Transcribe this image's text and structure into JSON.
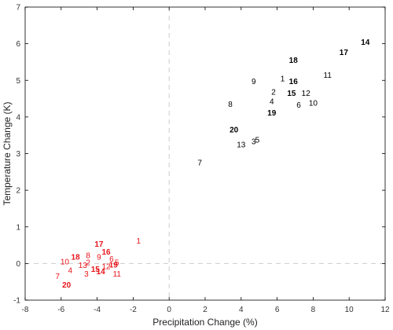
{
  "chart_data": {
    "type": "scatter",
    "title": "",
    "xlabel": "Precipitation Change (%)",
    "ylabel": "Temperature Change (K)",
    "xlim": [
      -8,
      12
    ],
    "ylim": [
      -1,
      7
    ],
    "xticks": [
      "-8",
      "-6",
      "-4",
      "-2",
      "0",
      "2",
      "4",
      "6",
      "8",
      "10",
      "12"
    ],
    "yticks": [
      "-1",
      "0",
      "1",
      "2",
      "3",
      "4",
      "5",
      "6",
      "7"
    ],
    "grid": false,
    "reference_lines": {
      "x": 0,
      "y": 0,
      "style": "dashed",
      "color": "#cccccc"
    },
    "series": [
      {
        "color": "#000000",
        "points": [
          {
            "label": "14",
            "x": 10.9,
            "y": 6.05,
            "bold": true
          },
          {
            "label": "17",
            "x": 9.7,
            "y": 5.77,
            "bold": true
          },
          {
            "label": "18",
            "x": 6.9,
            "y": 5.55,
            "bold": true
          },
          {
            "label": "11",
            "x": 8.8,
            "y": 5.15,
            "bold": false
          },
          {
            "label": "1",
            "x": 6.3,
            "y": 5.05,
            "bold": false
          },
          {
            "label": "16",
            "x": 6.9,
            "y": 4.97,
            "bold": true
          },
          {
            "label": "9",
            "x": 4.7,
            "y": 4.97,
            "bold": false
          },
          {
            "label": "2",
            "x": 5.8,
            "y": 4.68,
            "bold": false
          },
          {
            "label": "15",
            "x": 6.8,
            "y": 4.65,
            "bold": true
          },
          {
            "label": "12",
            "x": 7.6,
            "y": 4.65,
            "bold": false
          },
          {
            "label": "4",
            "x": 5.7,
            "y": 4.43,
            "bold": false
          },
          {
            "label": "10",
            "x": 8.0,
            "y": 4.38,
            "bold": false
          },
          {
            "label": "8",
            "x": 3.4,
            "y": 4.35,
            "bold": false
          },
          {
            "label": "6",
            "x": 7.2,
            "y": 4.33,
            "bold": false
          },
          {
            "label": "19",
            "x": 5.7,
            "y": 4.12,
            "bold": true
          },
          {
            "label": "20",
            "x": 3.6,
            "y": 3.65,
            "bold": true
          },
          {
            "label": "5",
            "x": 4.9,
            "y": 3.38,
            "bold": false
          },
          {
            "label": "3",
            "x": 4.7,
            "y": 3.33,
            "bold": false
          },
          {
            "label": "13",
            "x": 4.0,
            "y": 3.25,
            "bold": false
          },
          {
            "label": "7",
            "x": 1.7,
            "y": 2.75,
            "bold": false
          }
        ]
      },
      {
        "color": "#e8141b",
        "points": [
          {
            "label": "1",
            "x": -1.7,
            "y": 0.62,
            "bold": false
          },
          {
            "label": "17",
            "x": -3.9,
            "y": 0.53,
            "bold": true
          },
          {
            "label": "16",
            "x": -3.5,
            "y": 0.32,
            "bold": true
          },
          {
            "label": "8",
            "x": -4.5,
            "y": 0.22,
            "bold": false
          },
          {
            "label": "18",
            "x": -5.2,
            "y": 0.18,
            "bold": true
          },
          {
            "label": "9",
            "x": -3.9,
            "y": 0.18,
            "bold": false
          },
          {
            "label": "6",
            "x": -3.2,
            "y": 0.13,
            "bold": false
          },
          {
            "label": "10",
            "x": -5.8,
            "y": 0.05,
            "bold": false
          },
          {
            "label": "2",
            "x": -4.5,
            "y": 0.03,
            "bold": false
          },
          {
            "label": "5",
            "x": -2.9,
            "y": 0.03,
            "bold": false
          },
          {
            "label": "13",
            "x": -4.8,
            "y": -0.05,
            "bold": false
          },
          {
            "label": "19",
            "x": -3.1,
            "y": -0.03,
            "bold": true
          },
          {
            "label": "12",
            "x": -3.5,
            "y": -0.08,
            "bold": false
          },
          {
            "label": "4",
            "x": -5.5,
            "y": -0.18,
            "bold": false
          },
          {
            "label": "15",
            "x": -4.1,
            "y": -0.15,
            "bold": true
          },
          {
            "label": "14",
            "x": -3.8,
            "y": -0.22,
            "bold": true
          },
          {
            "label": "3",
            "x": -4.6,
            "y": -0.28,
            "bold": false
          },
          {
            "label": "11",
            "x": -2.9,
            "y": -0.28,
            "bold": false
          },
          {
            "label": "7",
            "x": -6.2,
            "y": -0.35,
            "bold": false
          },
          {
            "label": "20",
            "x": -5.7,
            "y": -0.58,
            "bold": true
          }
        ]
      }
    ]
  }
}
